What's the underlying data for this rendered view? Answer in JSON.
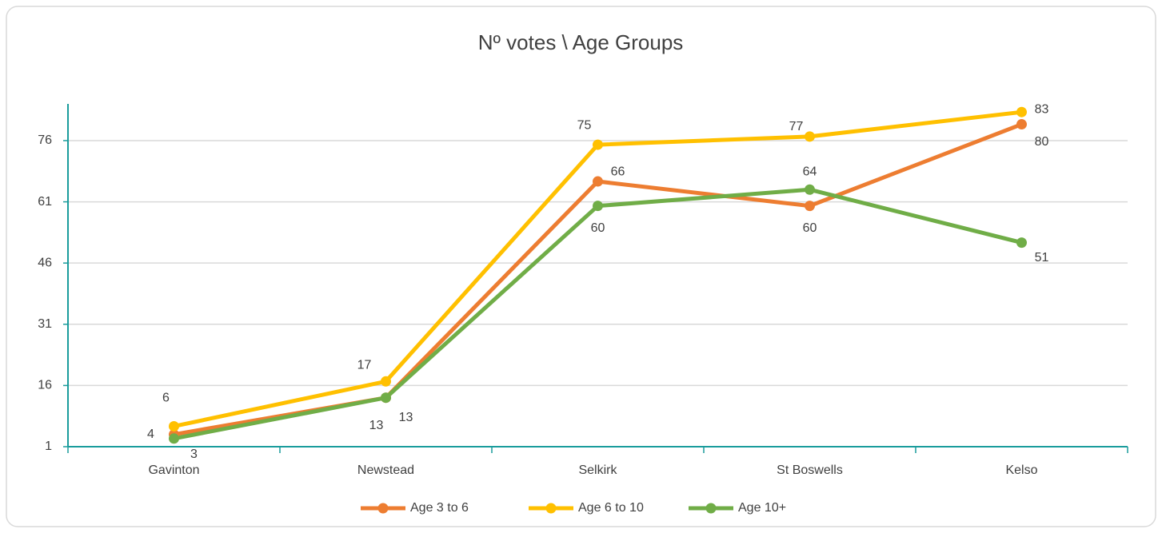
{
  "chart_data": {
    "type": "line",
    "title": "Nº votes \\ Age Groups",
    "categories": [
      "Gavinton",
      "Newstead",
      "Selkirk",
      "St Boswells",
      "Kelso"
    ],
    "series": [
      {
        "name": "Age 3 to 6",
        "color": "#ed7d31",
        "values": [
          4,
          13,
          66,
          60,
          80
        ]
      },
      {
        "name": "Age 6 to 10",
        "color": "#ffc000",
        "values": [
          6,
          17,
          75,
          77,
          83
        ]
      },
      {
        "name": "Age 10+",
        "color": "#70ad47",
        "values": [
          3,
          13,
          60,
          64,
          51
        ]
      }
    ],
    "ylim": [
      1,
      85
    ],
    "yticks": [
      1,
      16,
      31,
      46,
      61,
      76
    ],
    "grid": true,
    "legend": "bottom"
  }
}
